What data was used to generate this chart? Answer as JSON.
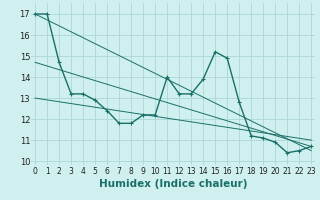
{
  "xlabel": "Humidex (Indice chaleur)",
  "background_color": "#cff0ee",
  "grid_color": "#aad8d4",
  "line_color": "#1a7068",
  "main_x": [
    0,
    1,
    2,
    3,
    4,
    5,
    6,
    7,
    8,
    9,
    10,
    11,
    12,
    13,
    14,
    15,
    16,
    17,
    18,
    19,
    20,
    21,
    22,
    23
  ],
  "main_y": [
    17.0,
    17.0,
    14.7,
    13.2,
    13.2,
    12.9,
    12.4,
    11.8,
    11.8,
    12.2,
    12.2,
    14.0,
    13.2,
    13.2,
    13.9,
    15.2,
    14.9,
    12.8,
    11.2,
    11.1,
    10.9,
    10.4,
    10.5,
    10.7
  ],
  "trend_lines": [
    {
      "x": [
        0,
        23
      ],
      "y": [
        17.0,
        10.5
      ]
    },
    {
      "x": [
        0,
        23
      ],
      "y": [
        14.7,
        10.7
      ]
    },
    {
      "x": [
        0,
        23
      ],
      "y": [
        13.0,
        11.0
      ]
    }
  ],
  "ylim": [
    9.8,
    17.5
  ],
  "xlim": [
    -0.3,
    23.3
  ],
  "yticks": [
    10,
    11,
    12,
    13,
    14,
    15,
    16,
    17
  ],
  "xticks": [
    0,
    1,
    2,
    3,
    4,
    5,
    6,
    7,
    8,
    9,
    10,
    11,
    12,
    13,
    14,
    15,
    16,
    17,
    18,
    19,
    20,
    21,
    22,
    23
  ],
  "tick_fontsize": 5.5,
  "label_fontsize": 7.5,
  "linewidth": 1.0,
  "markersize": 3.5
}
